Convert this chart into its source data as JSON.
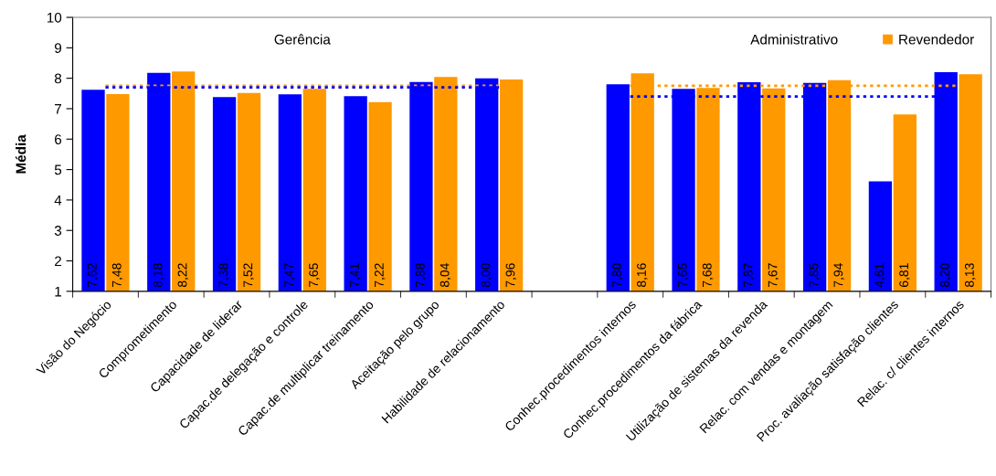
{
  "chart_data": {
    "type": "bar",
    "ylabel": "Média",
    "categories": [
      "Visão do Negócio",
      "Comprometimento",
      "Capacidade de liderar",
      "Capac.de delegação e controle",
      "Capac.de multiplicar treinamento",
      "Aceitação pelo grupo",
      "Habilidade de relacionamento",
      null,
      "Conhec.procedimentos internos",
      "Conhec.procedimentos da fábrica",
      "Utilização de sistemas da revenda",
      "Relac. com vendas e montagem",
      "Proc. avaliação satisfação clientes",
      "Relac. c/ clientes internos"
    ],
    "series": [
      {
        "color": "#0000ff",
        "values": [
          7.62,
          8.18,
          7.38,
          7.47,
          7.41,
          7.88,
          8.0,
          null,
          7.8,
          7.65,
          7.87,
          7.85,
          4.61,
          8.2
        ],
        "value_labels": [
          "7,62",
          "8,18",
          "7,38",
          "7,47",
          "7,41",
          "7,88",
          "8,00",
          null,
          "7,80",
          "7,65",
          "7,87",
          "7,85",
          "4,61",
          "8,20"
        ]
      },
      {
        "name": "Revendedor",
        "color": "#ff9900",
        "values": [
          7.48,
          8.22,
          7.52,
          7.65,
          7.22,
          8.04,
          7.96,
          null,
          8.16,
          7.68,
          7.67,
          7.94,
          6.81,
          8.13
        ],
        "value_labels": [
          "7,48",
          "8,22",
          "7,52",
          "7,65",
          "7,22",
          "8,04",
          "7,96",
          null,
          "8,16",
          "7,68",
          "7,67",
          "7,94",
          "6,81",
          "8,13"
        ]
      },
      {
        "type": "line",
        "color": "#ff9900",
        "line_style": "dotted",
        "values": [
          7.75,
          7.75,
          7.75,
          7.75,
          7.75,
          7.75,
          7.75,
          null,
          7.75,
          7.75,
          7.75,
          7.75,
          7.75,
          7.75
        ]
      },
      {
        "type": "line",
        "color": "#0000ff",
        "line_style": "dotted",
        "values": [
          7.7,
          7.7,
          7.7,
          7.7,
          7.7,
          7.7,
          7.7,
          null,
          7.4,
          7.4,
          7.4,
          7.4,
          7.4,
          7.4
        ]
      }
    ],
    "ylim": [
      1,
      10
    ],
    "yticks": [
      1,
      2,
      3,
      4,
      5,
      6,
      7,
      8,
      9,
      10
    ],
    "legend": "top right",
    "annotations": [
      "Gerência",
      "Administrativo"
    ]
  }
}
